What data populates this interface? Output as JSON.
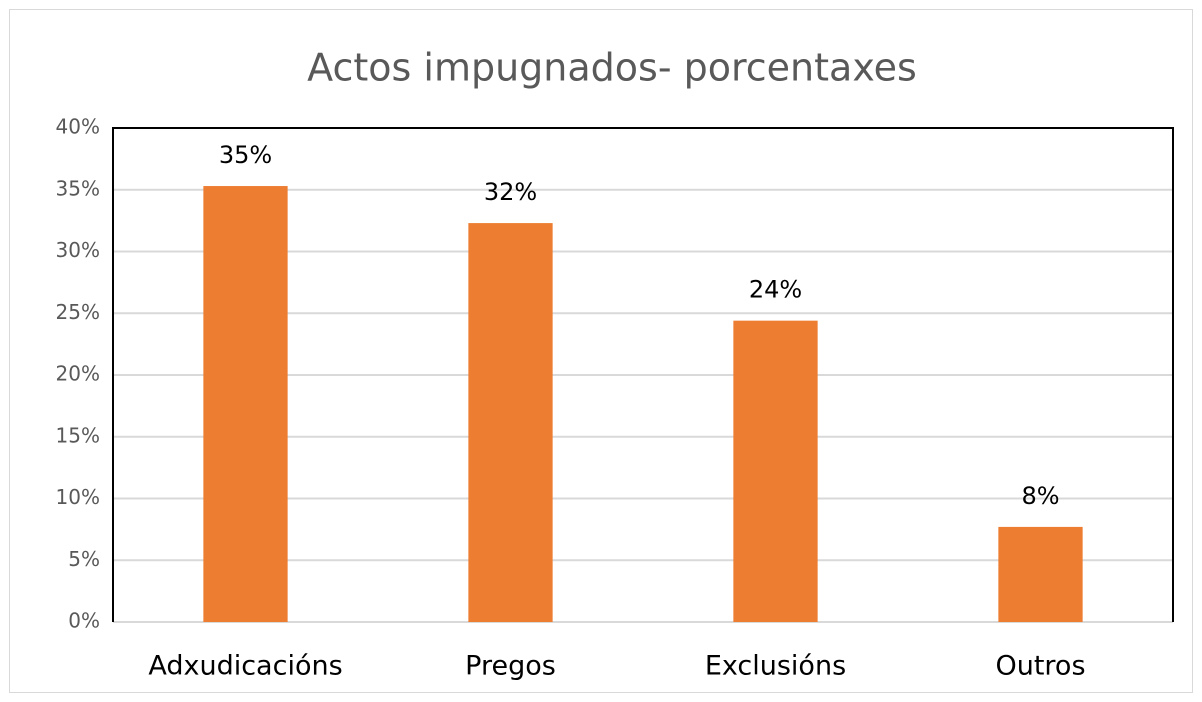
{
  "chart_data": {
    "type": "bar",
    "title": "Actos impugnados- porcentaxes",
    "categories": [
      "Adxudicacións",
      "Pregos",
      "Exclusións",
      "Outros"
    ],
    "values": [
      35.3,
      32.3,
      24.4,
      7.7
    ],
    "value_labels": [
      "35%",
      "32%",
      "24%",
      "8%"
    ],
    "color": "#ed7d31",
    "ylim": [
      0,
      40
    ],
    "yticks": [
      {
        "value": 0,
        "label": "0%"
      },
      {
        "value": 5,
        "label": "5%"
      },
      {
        "value": 10,
        "label": "10%"
      },
      {
        "value": 15,
        "label": "15%"
      },
      {
        "value": 20,
        "label": "20%"
      },
      {
        "value": 25,
        "label": "25%"
      },
      {
        "value": 30,
        "label": "30%"
      },
      {
        "value": 35,
        "label": "35%"
      },
      {
        "value": 40,
        "label": "40%"
      }
    ],
    "grid": true
  }
}
